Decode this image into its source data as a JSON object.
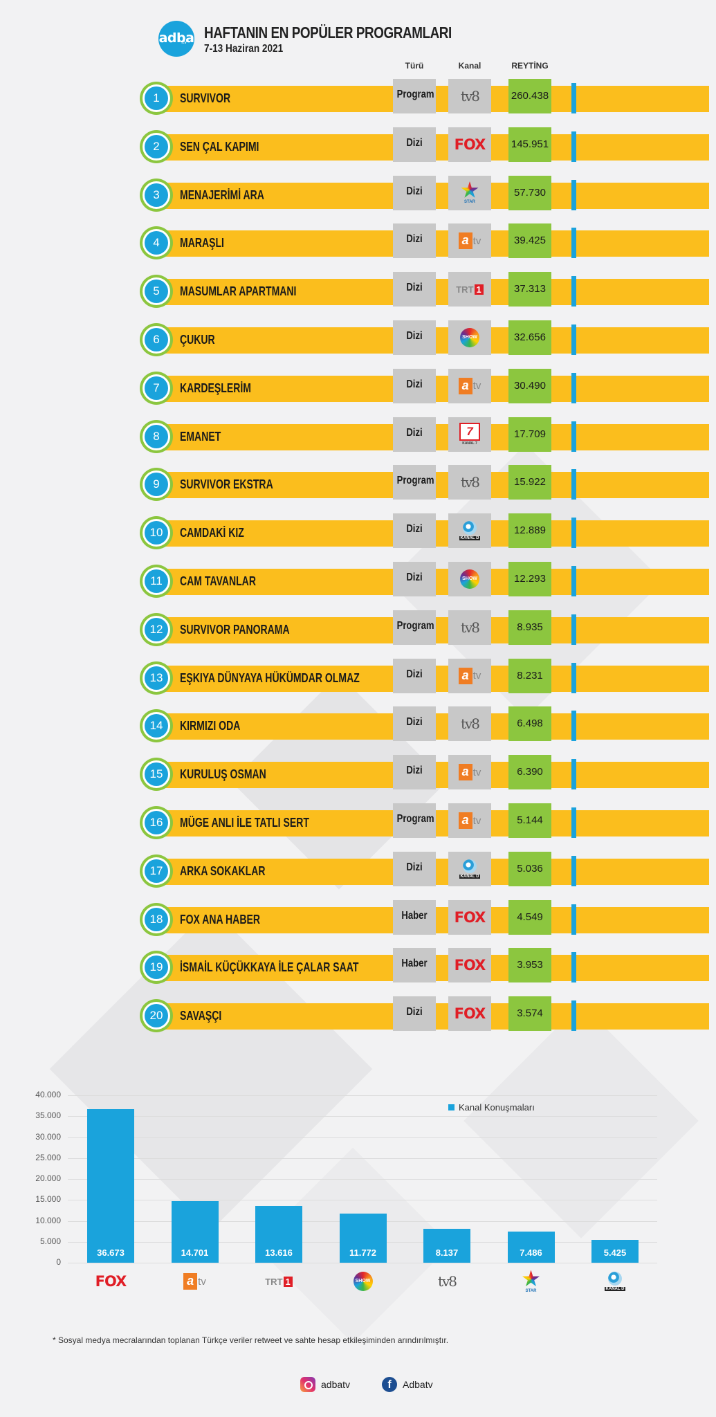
{
  "header": {
    "logo_text": "adba",
    "logo_sub": ".tv",
    "title": "HAFTANIN EN POPÜLER PROGRAMLARI",
    "date": "7-13 Haziran 2021"
  },
  "columns": {
    "type": "Türü",
    "channel": "Kanal",
    "rating": "REYTİNG"
  },
  "rows": [
    {
      "rank": "1",
      "name": "SURVIVOR",
      "type": "Program",
      "channel": "tv8",
      "rating": "260.438"
    },
    {
      "rank": "2",
      "name": "SEN ÇAL KAPIMI",
      "type": "Dizi",
      "channel": "fox",
      "rating": "145.951"
    },
    {
      "rank": "3",
      "name": "MENAJERİMİ ARA",
      "type": "Dizi",
      "channel": "star",
      "rating": "57.730"
    },
    {
      "rank": "4",
      "name": "MARAŞLI",
      "type": "Dizi",
      "channel": "atv",
      "rating": "39.425"
    },
    {
      "rank": "5",
      "name": "MASUMLAR APARTMANI",
      "type": "Dizi",
      "channel": "trt1",
      "rating": "37.313"
    },
    {
      "rank": "6",
      "name": "ÇUKUR",
      "type": "Dizi",
      "channel": "show",
      "rating": "32.656"
    },
    {
      "rank": "7",
      "name": "KARDEŞLERİM",
      "type": "Dizi",
      "channel": "atv",
      "rating": "30.490"
    },
    {
      "rank": "8",
      "name": "EMANET",
      "type": "Dizi",
      "channel": "kanal7",
      "rating": "17.709"
    },
    {
      "rank": "9",
      "name": "SURVIVOR EKSTRA",
      "type": "Program",
      "channel": "tv8",
      "rating": "15.922"
    },
    {
      "rank": "10",
      "name": "CAMDAKİ KIZ",
      "type": "Dizi",
      "channel": "kanald",
      "rating": "12.889"
    },
    {
      "rank": "11",
      "name": "CAM TAVANLAR",
      "type": "Dizi",
      "channel": "show",
      "rating": "12.293"
    },
    {
      "rank": "12",
      "name": "SURVIVOR PANORAMA",
      "type": "Program",
      "channel": "tv8",
      "rating": "8.935"
    },
    {
      "rank": "13",
      "name": "EŞKIYA DÜNYAYA HÜKÜMDAR OLMAZ",
      "type": "Dizi",
      "channel": "atv",
      "rating": "8.231"
    },
    {
      "rank": "14",
      "name": "KIRMIZI ODA",
      "type": "Dizi",
      "channel": "tv8",
      "rating": "6.498"
    },
    {
      "rank": "15",
      "name": "KURULUŞ OSMAN",
      "type": "Dizi",
      "channel": "atv",
      "rating": "6.390"
    },
    {
      "rank": "16",
      "name": "MÜGE ANLI İLE TATLI SERT",
      "type": "Program",
      "channel": "atv",
      "rating": "5.144"
    },
    {
      "rank": "17",
      "name": "ARKA SOKAKLAR",
      "type": "Dizi",
      "channel": "kanald",
      "rating": "5.036"
    },
    {
      "rank": "18",
      "name": "FOX ANA HABER",
      "type": "Haber",
      "channel": "fox",
      "rating": "4.549"
    },
    {
      "rank": "19",
      "name": "İSMAİL KÜÇÜKKAYA İLE ÇALAR SAAT",
      "type": "Haber",
      "channel": "fox",
      "rating": "3.953"
    },
    {
      "rank": "20",
      "name": "SAVAŞÇI",
      "type": "Dizi",
      "channel": "fox",
      "rating": "3.574"
    }
  ],
  "channel_logos": {
    "fox": {
      "text": "FOX"
    },
    "tv8": {
      "text": "tv8"
    },
    "atv": {
      "a": "a",
      "tv": "tv"
    },
    "trt1": {
      "text": "TRT",
      "num": "1"
    },
    "show": {
      "text": "SHOW"
    },
    "star": {
      "text": "STAR"
    },
    "kanal7": {
      "num": "7",
      "text": "KANAL 7"
    },
    "kanald": {
      "text": "KANAL D"
    }
  },
  "chart_data": {
    "type": "bar",
    "categories": [
      "fox",
      "atv",
      "trt1",
      "show",
      "tv8",
      "star",
      "kanald"
    ],
    "series": [
      {
        "name": "Kanal Konuşmaları",
        "values": [
          36673,
          14701,
          13616,
          11772,
          8137,
          7486,
          5425
        ],
        "labels": [
          "36.673",
          "14.701",
          "13.616",
          "11.772",
          "8.137",
          "7.486",
          "5.425"
        ]
      }
    ],
    "yticks": [
      "40.000",
      "35.000",
      "30.000",
      "25.000",
      "20.000",
      "15.000",
      "10.000",
      "5.000",
      "0"
    ],
    "ylim": [
      0,
      40000
    ],
    "grid": true,
    "legend": "top-right",
    "bar_color": "#1aa3dc"
  },
  "footnote": "* Sosyal medya mecralarından toplanan Türkçe veriler retweet ve sahte hesap etkileşiminden arındırılmıştır.",
  "social": {
    "instagram": "adbatv",
    "facebook": "Adbatv",
    "fb_glyph": "f"
  },
  "colors": {
    "yellow": "#fbbe1d",
    "blue": "#1aa3dc",
    "green": "#8cc63f",
    "gray": "#c8c8c8"
  }
}
